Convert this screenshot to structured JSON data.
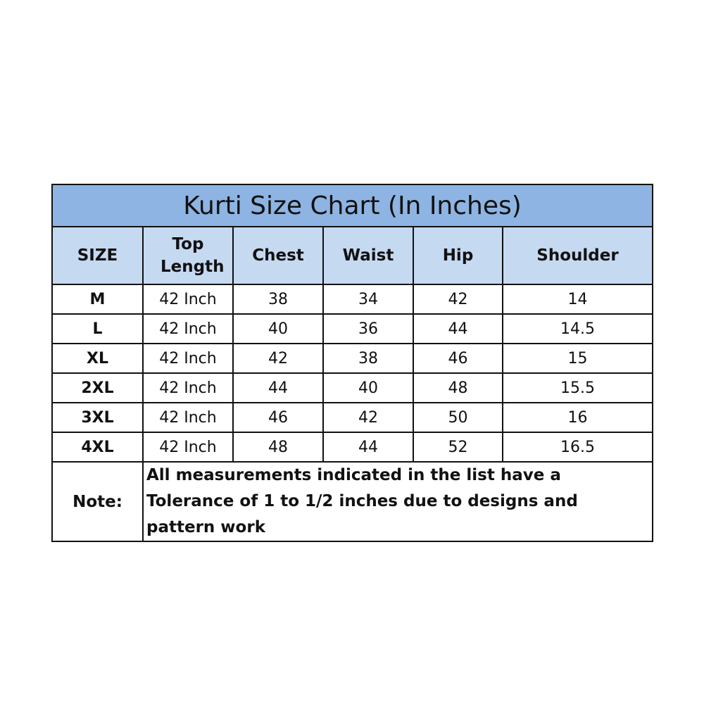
{
  "title": "Kurti Size Chart (In Inches)",
  "headers": [
    "SIZE",
    "Top Length",
    "Chest",
    "Waist",
    "Hip",
    "Shoulder"
  ],
  "rows": [
    [
      "M",
      "42 Inch",
      "38",
      "34",
      "42",
      "14"
    ],
    [
      "L",
      "42 Inch",
      "40",
      "36",
      "44",
      "14.5"
    ],
    [
      "XL",
      "42 Inch",
      "42",
      "38",
      "46",
      "15"
    ],
    [
      "2XL",
      "42 Inch",
      "44",
      "40",
      "48",
      "15.5"
    ],
    [
      "3XL",
      "42 Inch",
      "46",
      "42",
      "50",
      "16"
    ],
    [
      "4XL",
      "42 Inch",
      "48",
      "44",
      "52",
      "16.5"
    ]
  ],
  "note": {
    "label": "Note:",
    "text": "All measurements indicated in the list have a Tolerance of 1 to 1/2 inches due to designs and pattern work"
  },
  "colors": {
    "title_bg": "#8db4e2",
    "header_bg": "#c5d9f1",
    "border": "#111111"
  }
}
